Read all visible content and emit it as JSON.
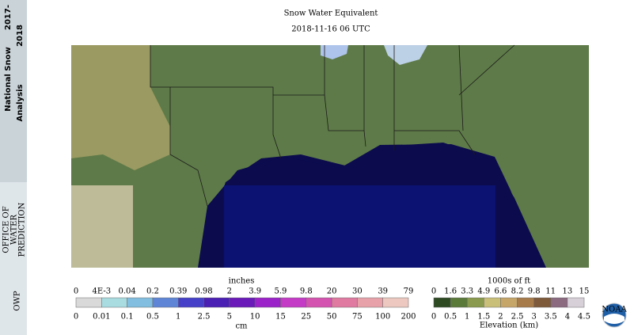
{
  "banner": {
    "line1": "National Snow",
    "line2": "Analysis",
    "years1": "2017-",
    "years2": "2018",
    "org_short": "OWP",
    "org_line1": "OFFICE OF",
    "org_line2": "WATER",
    "org_line3": "PREDICTION"
  },
  "header": {
    "title": "Snow Water Equivalent",
    "subtitle": "2018-11-16 06 UTC"
  },
  "snow_legend": {
    "unit_top": "inches",
    "ticks_top": [
      "0",
      "4E-3",
      "0.04",
      "0.2",
      "0.39",
      "0.98",
      "2",
      "3.9",
      "5.9",
      "9.8",
      "20",
      "30",
      "39",
      "79"
    ],
    "ticks_bottom": [
      "0",
      "0.01",
      "0.1",
      "0.5",
      "1",
      "2.5",
      "5",
      "10",
      "15",
      "25",
      "50",
      "75",
      "100",
      "200"
    ],
    "unit_bottom": "cm"
  },
  "elevation_legend": {
    "unit_top": "1000s of ft",
    "ticks_top": [
      "0",
      "1.6",
      "3.3",
      "4.9",
      "6.6",
      "8.2",
      "9.8",
      "11",
      "13",
      "15"
    ],
    "ticks_bottom": [
      "0",
      "0.5",
      "1",
      "1.5",
      "2",
      "2.5",
      "3",
      "3.5",
      "4",
      "4.5"
    ],
    "unit_bottom": "Elevation (km)"
  },
  "logo": "NOAA"
}
